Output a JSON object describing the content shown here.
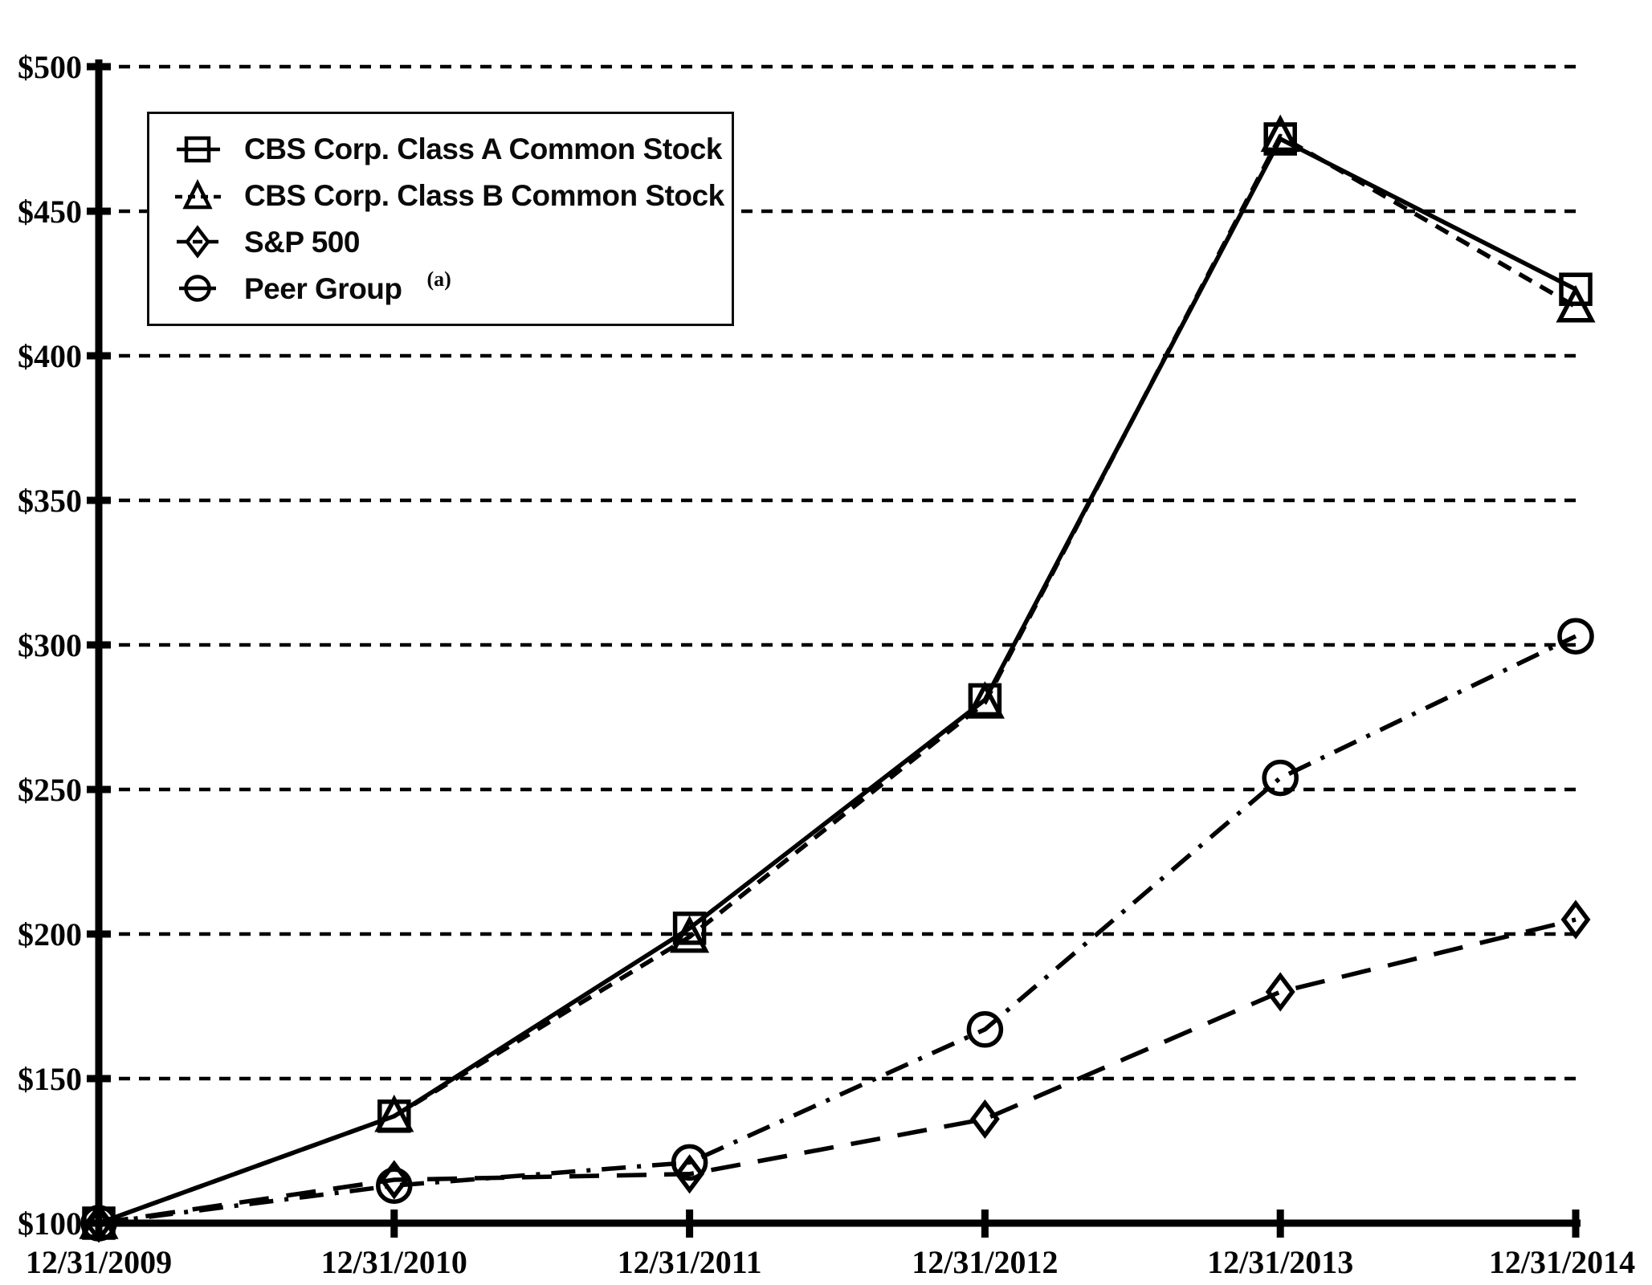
{
  "page": {
    "background": "#ffffff",
    "ink_color": "#000000"
  },
  "chart_data": {
    "type": "line",
    "title": "",
    "xlabel": "",
    "ylabel": "",
    "categories": [
      "12/31/2009",
      "12/31/2010",
      "12/31/2011",
      "12/31/2012",
      "12/31/2013",
      "12/31/2014"
    ],
    "series": [
      {
        "name": "CBS Corp. Class A Common Stock",
        "marker": "square",
        "line_style": "solid",
        "values": [
          100,
          137,
          202,
          281,
          475,
          423
        ]
      },
      {
        "name": "CBS Corp. Class B Common Stock",
        "marker": "triangle",
        "line_style": "dashed",
        "values": [
          100,
          137,
          199,
          280,
          476,
          417
        ]
      },
      {
        "name": "S&P 500",
        "marker": "diamond",
        "line_style": "long-dash",
        "values": [
          100,
          115,
          117,
          136,
          180,
          205
        ]
      },
      {
        "name": "Peer Group",
        "name_superscript": "(a)",
        "marker": "circle",
        "line_style": "dash-dot",
        "values": [
          100,
          113,
          121,
          167,
          254,
          303
        ]
      }
    ],
    "y_tick_labels": [
      "$500",
      "$450",
      "$400",
      "$350",
      "$300",
      "$250",
      "$200",
      "$150",
      "$100"
    ],
    "y_tick_values": [
      500,
      450,
      400,
      350,
      300,
      250,
      200,
      150,
      100
    ],
    "ylim": [
      100,
      500
    ],
    "grid": "horizontal-dashed",
    "legend_position": "top-left",
    "line_color": "#000000",
    "background": "#ffffff"
  }
}
